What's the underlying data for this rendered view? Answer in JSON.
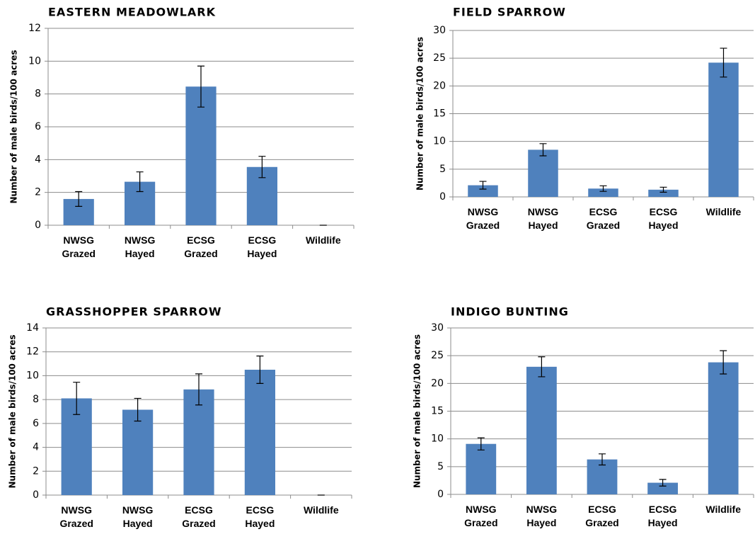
{
  "chart_data": [
    {
      "type": "bar",
      "title": "EASTERN MEADOWLARK",
      "ylabel": "Number of male birds/100 acres",
      "categories": [
        "NWSG Grazed",
        "NWSG Hayed",
        "ECSG Grazed",
        "ECSG Hayed",
        "Wildlife"
      ],
      "values": [
        1.6,
        2.65,
        8.45,
        3.55,
        0
      ],
      "errors": [
        0.45,
        0.6,
        1.25,
        0.65,
        0
      ],
      "color": "#4f81bd",
      "ylim": [
        0,
        12
      ],
      "yticks": [
        0,
        2,
        4,
        6,
        8,
        10,
        12
      ],
      "grid": true
    },
    {
      "type": "bar",
      "title": "FIELD SPARROW",
      "ylabel": "Number of male birds/100 acres",
      "categories": [
        "NWSG Grazed",
        "NWSG Hayed",
        "ECSG Grazed",
        "ECSG Hayed",
        "Wildlife"
      ],
      "values": [
        2.1,
        8.5,
        1.5,
        1.3,
        24.2
      ],
      "errors": [
        0.7,
        1.1,
        0.5,
        0.45,
        2.6
      ],
      "color": "#4f81bd",
      "ylim": [
        0,
        30
      ],
      "yticks": [
        0,
        5,
        10,
        15,
        20,
        25,
        30
      ],
      "grid": true
    },
    {
      "type": "bar",
      "title": "GRASSHOPPER SPARROW",
      "ylabel": "Number of male birds/100 acres",
      "categories": [
        "NWSG Grazed",
        "NWSG Hayed",
        "ECSG Grazed",
        "ECSG Hayed",
        "Wildlife"
      ],
      "values": [
        8.1,
        7.15,
        8.85,
        10.5,
        0
      ],
      "errors": [
        1.35,
        0.95,
        1.3,
        1.15,
        0
      ],
      "color": "#4f81bd",
      "ylim": [
        0,
        14
      ],
      "yticks": [
        0,
        2,
        4,
        6,
        8,
        10,
        12,
        14
      ],
      "grid": true
    },
    {
      "type": "bar",
      "title": "INDIGO BUNTING",
      "ylabel": "Number of male birds/100 acres",
      "categories": [
        "NWSG Grazed",
        "NWSG Hayed",
        "ECSG Grazed",
        "ECSG Hayed",
        "Wildlife"
      ],
      "values": [
        9.1,
        23.0,
        6.3,
        2.1,
        23.8
      ],
      "errors": [
        1.1,
        1.8,
        1.0,
        0.6,
        2.1
      ],
      "color": "#4f81bd",
      "ylim": [
        0,
        30
      ],
      "yticks": [
        0,
        5,
        10,
        15,
        20,
        25,
        30
      ],
      "grid": true
    }
  ]
}
